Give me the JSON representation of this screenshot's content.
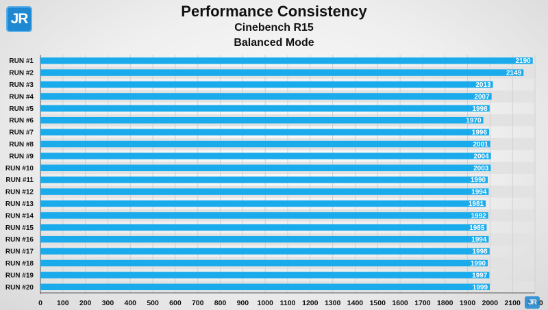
{
  "header": {
    "title": "Performance Consistency",
    "subtitle1": "Cinebench R15",
    "subtitle2": "Balanced Mode",
    "logo_text": "JR"
  },
  "colors": {
    "bar": "#1aabec",
    "band": "#e2e2e2",
    "grid": "#d0d0d0",
    "axis": "#555555"
  },
  "chart_data": {
    "type": "bar",
    "orientation": "horizontal",
    "title": "Performance Consistency",
    "subtitle": [
      "Cinebench R15",
      "Balanced Mode"
    ],
    "categories": [
      "RUN #1",
      "RUN #2",
      "RUN #3",
      "RUN #4",
      "RUN #5",
      "RUN #6",
      "RUN #7",
      "RUN #8",
      "RUN #9",
      "RUN #10",
      "RUN #11",
      "RUN #12",
      "RUN #13",
      "RUN #14",
      "RUN #15",
      "RUN #16",
      "RUN #17",
      "RUN #18",
      "RUN #19",
      "RUN #20"
    ],
    "values": [
      2190,
      2149,
      2013,
      2007,
      1998,
      1970,
      1996,
      2001,
      2004,
      2003,
      1990,
      1994,
      1981,
      1992,
      1985,
      1994,
      1998,
      1990,
      1997,
      1999
    ],
    "xlim": [
      0,
      2200
    ],
    "xticks": [
      0,
      100,
      200,
      300,
      400,
      500,
      600,
      700,
      800,
      900,
      1000,
      1100,
      1200,
      1300,
      1400,
      1500,
      1600,
      1700,
      1800,
      1900,
      2000,
      2100,
      2200
    ],
    "data_labels": true,
    "grid": true,
    "legend": "none"
  }
}
